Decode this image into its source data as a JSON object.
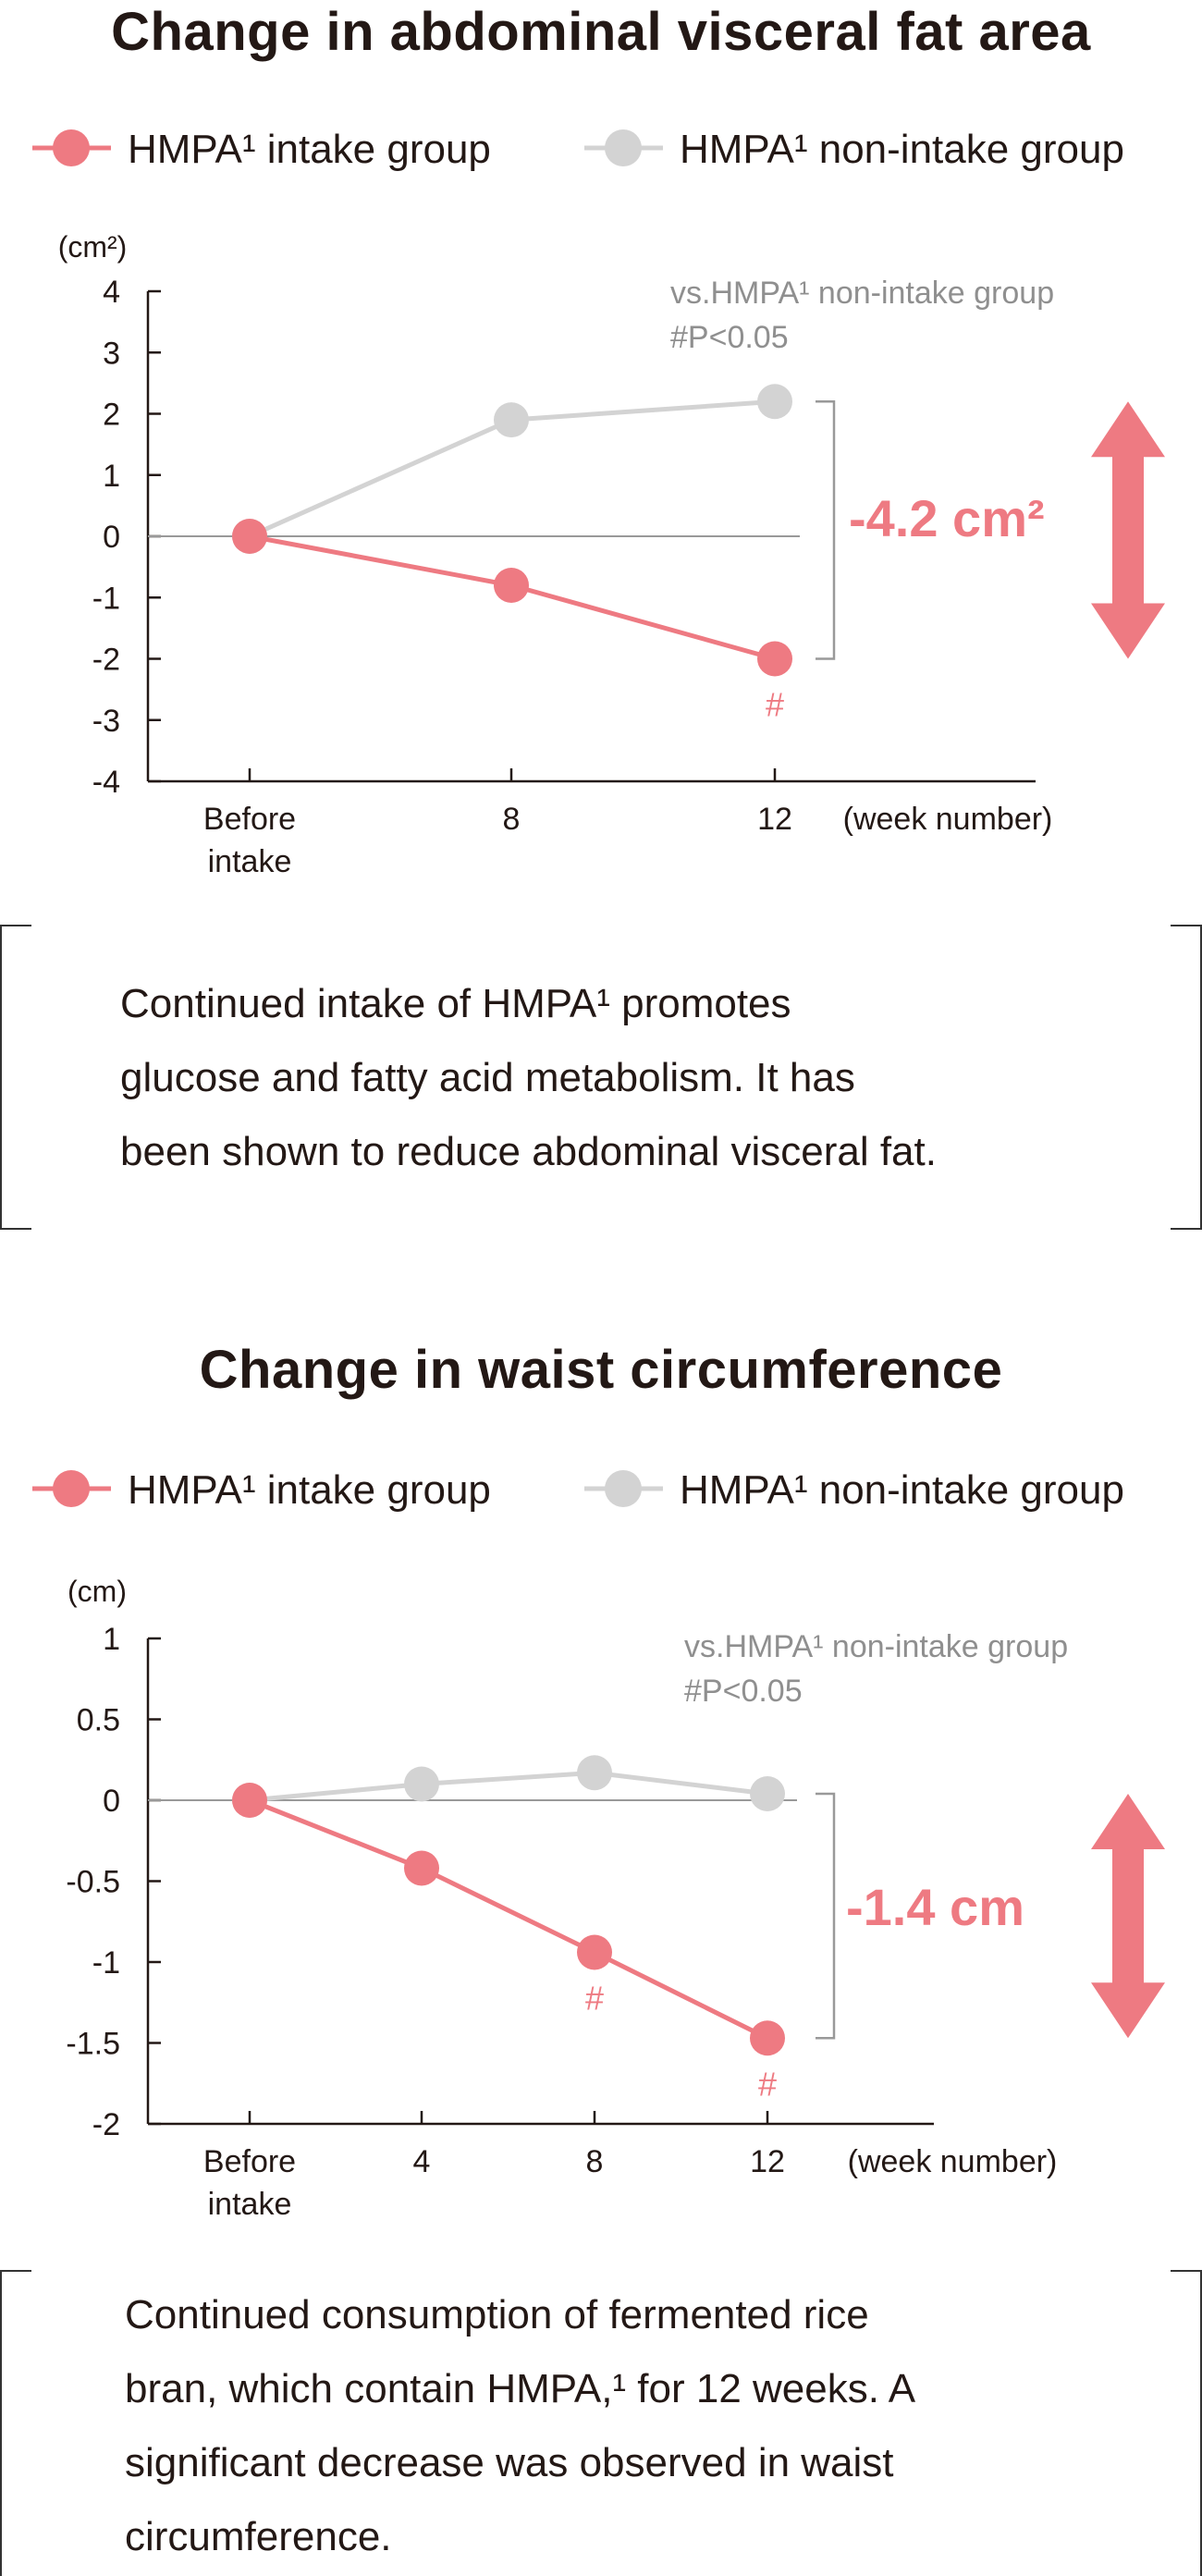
{
  "colors": {
    "intake": "#EE7A82",
    "non_intake": "#D3D3D3",
    "axis": "#231815",
    "annotation": "#8F8F8F",
    "bracket": "#999999"
  },
  "sections": [
    {
      "title": "Change in abdominal visceral fat area",
      "description_lines": [
        "Continued intake of HMPA¹ promotes",
        "glucose and fatty acid metabolism. It has",
        "been shown to reduce abdominal visceral fat."
      ]
    },
    {
      "title": "Change in waist circumference",
      "description_lines": [
        "Continued consumption of fermented rice",
        "bran, which contain HMPA,¹ for 12 weeks. A",
        "significant decrease was observed in waist",
        "circumference."
      ]
    }
  ],
  "chart_data": [
    {
      "type": "line",
      "title": "Change in abdominal visceral fat area",
      "unit_label": "(cm²)",
      "x_unit_label": "(week number)",
      "categories": [
        [
          "Before",
          "intake"
        ],
        [
          "8"
        ],
        [
          "12"
        ]
      ],
      "yticks": [
        "4",
        "3",
        "2",
        "1",
        "0",
        "-1",
        "-2",
        "-3",
        "-4"
      ],
      "ylim": [
        -4,
        4
      ],
      "legend": [
        "HMPA¹ intake group",
        "HMPA¹ non-intake group"
      ],
      "series": [
        {
          "name": "HMPA¹ intake group",
          "values": [
            0,
            -0.8,
            -2.0
          ],
          "markers": [
            "",
            "",
            "#"
          ]
        },
        {
          "name": "HMPA¹ non-intake group",
          "values": [
            0,
            1.9,
            2.2
          ]
        }
      ],
      "significance_note": [
        "vs.HMPA¹ non-intake group",
        "#P<0.05"
      ],
      "difference_label": "-4.2 cm²"
    },
    {
      "type": "line",
      "title": "Change in waist circumference",
      "unit_label": "(cm)",
      "x_unit_label": "(week number)",
      "categories": [
        [
          "Before",
          "intake"
        ],
        [
          "4"
        ],
        [
          "8"
        ],
        [
          "12"
        ]
      ],
      "yticks": [
        "1",
        "0.5",
        "0",
        "-0.5",
        "-1",
        "-1.5",
        "-2"
      ],
      "ylim": [
        -2,
        1
      ],
      "legend": [
        "HMPA¹ intake group",
        "HMPA¹ non-intake group"
      ],
      "series": [
        {
          "name": "HMPA¹ intake group",
          "values": [
            0,
            -0.42,
            -0.94,
            -1.47
          ],
          "markers": [
            "",
            "",
            "#",
            "#"
          ]
        },
        {
          "name": "HMPA¹ non-intake group",
          "values": [
            0,
            0.1,
            0.17,
            0.04
          ]
        }
      ],
      "significance_note": [
        "vs.HMPA¹ non-intake group",
        "#P<0.05"
      ],
      "difference_label": "-1.4 cm"
    }
  ]
}
